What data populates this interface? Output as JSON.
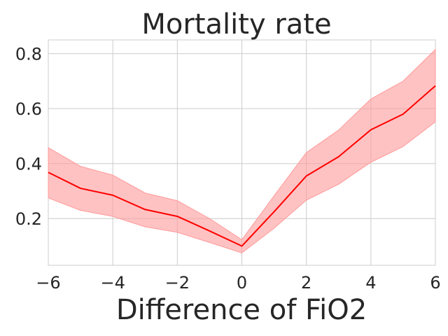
{
  "chart_data": {
    "type": "line",
    "title": "Mortality rate",
    "xlabel": "Difference of FiO2",
    "ylabel": "",
    "xlim": [
      -6,
      6
    ],
    "ylim": [
      0.03,
      0.85
    ],
    "x_ticks": [
      -6,
      -4,
      -2,
      0,
      2,
      4,
      6
    ],
    "x_tick_labels": [
      "−6",
      "−4",
      "−2",
      "0",
      "2",
      "4",
      "6"
    ],
    "y_ticks": [
      0.2,
      0.4,
      0.6,
      0.8
    ],
    "y_tick_labels": [
      "0.2",
      "0.4",
      "0.6",
      "0.8"
    ],
    "grid": true,
    "legend": "none",
    "colors": {
      "line": "#ff0000",
      "band": "#ff9999"
    },
    "series": [
      {
        "x": [
          -6,
          -5,
          -4,
          -3,
          -2,
          -1,
          0,
          1,
          2,
          3,
          4,
          5,
          6
        ],
        "y": [
          0.368,
          0.31,
          0.285,
          0.233,
          0.208,
          0.155,
          0.1,
          0.225,
          0.355,
          0.425,
          0.523,
          0.58,
          0.683
        ],
        "lower": [
          0.275,
          0.23,
          0.208,
          0.17,
          0.15,
          0.113,
          0.075,
          0.165,
          0.267,
          0.325,
          0.405,
          0.462,
          0.552
        ],
        "upper": [
          0.458,
          0.39,
          0.358,
          0.293,
          0.265,
          0.2,
          0.123,
          0.283,
          0.44,
          0.522,
          0.635,
          0.7,
          0.815
        ]
      }
    ]
  }
}
